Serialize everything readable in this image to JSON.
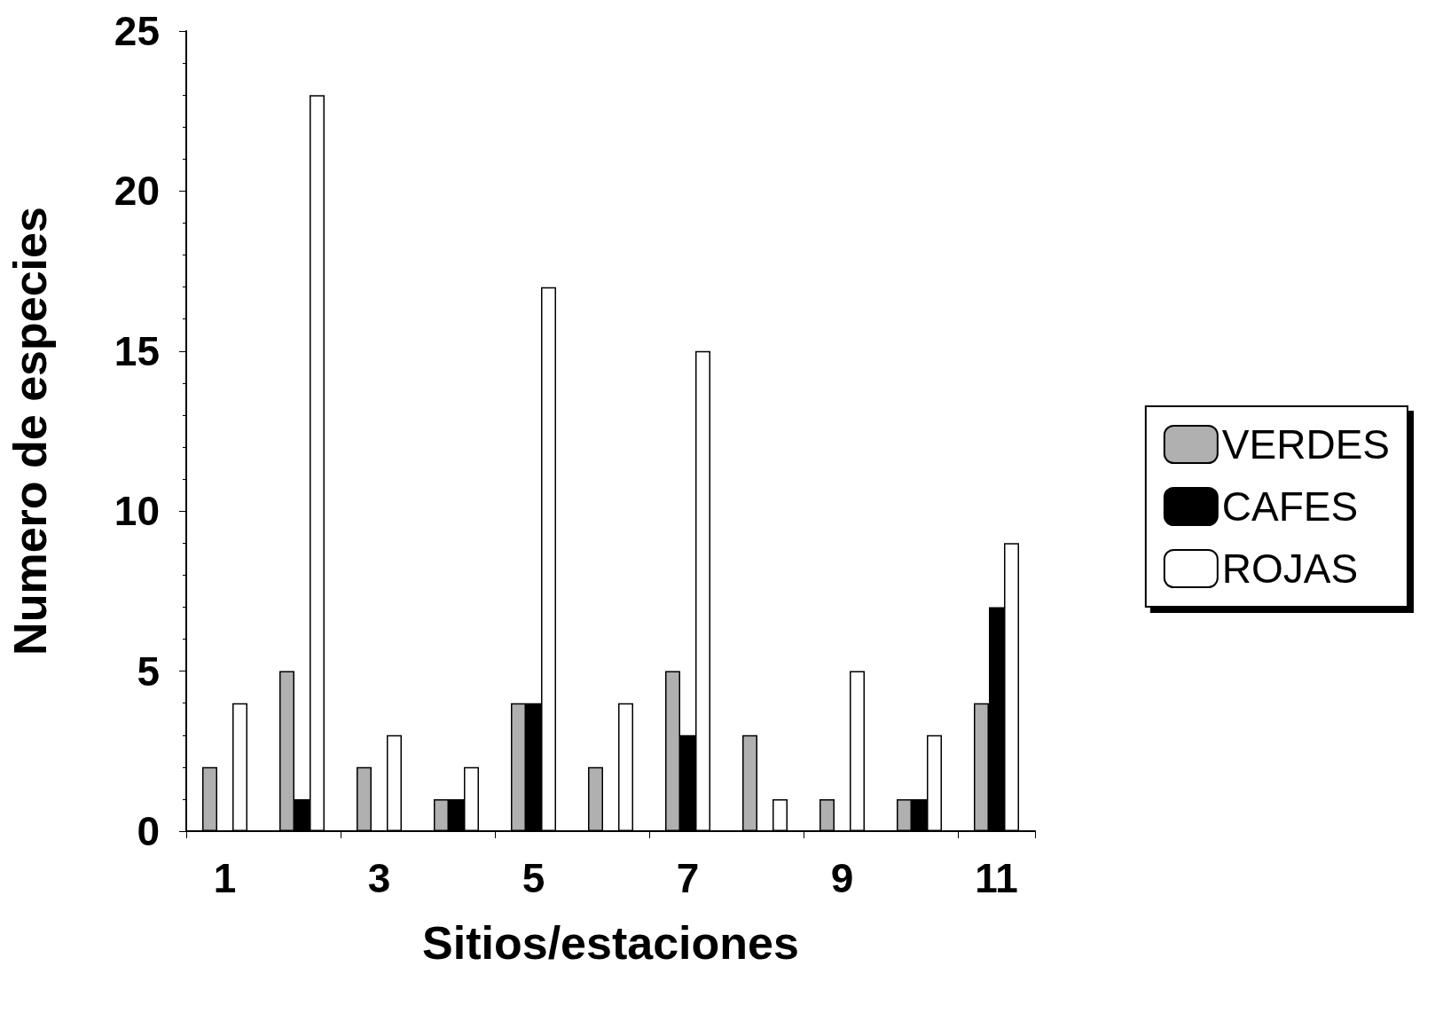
{
  "chart_data": {
    "type": "bar",
    "xlabel": "Sitios/estaciones",
    "ylabel": "Numero de especies",
    "categories": [
      "1",
      null,
      "3",
      null,
      "5",
      null,
      "7",
      null,
      "9",
      null,
      "11"
    ],
    "series": [
      {
        "name": "VERDES",
        "color": "#b0b0b0",
        "values": [
          2,
          5,
          2,
          1,
          4,
          2,
          5,
          3,
          1,
          1,
          4
        ]
      },
      {
        "name": "CAFES",
        "color": "#000000",
        "values": [
          0,
          1,
          0,
          1,
          4,
          0,
          3,
          0,
          0,
          1,
          7
        ]
      },
      {
        "name": "ROJAS",
        "color": "#ffffff",
        "values": [
          4,
          23,
          3,
          2,
          17,
          4,
          15,
          1,
          5,
          3,
          9
        ]
      }
    ],
    "ylim": [
      0,
      25
    ],
    "yticks": [
      0,
      5,
      10,
      15,
      20,
      25
    ],
    "grid": false,
    "legend": "right"
  }
}
